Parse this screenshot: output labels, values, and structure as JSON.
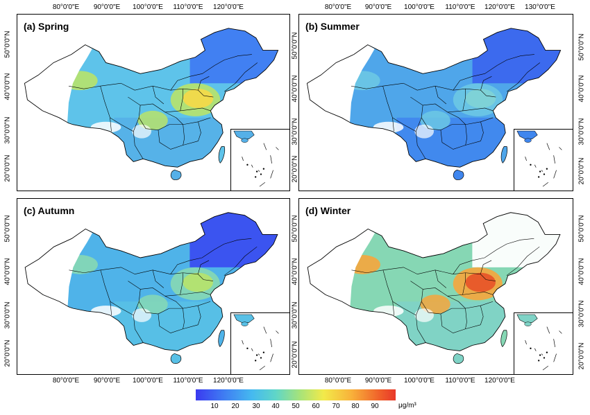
{
  "panels": [
    {
      "label": "(a) Spring",
      "season": "spring"
    },
    {
      "label": "(b) Summer",
      "season": "summer"
    },
    {
      "label": "(c) Autumn",
      "season": "autumn"
    },
    {
      "label": "(d) Winter",
      "season": "winter"
    }
  ],
  "lon_ticks": [
    "80°0'0\"E",
    "90°0'0\"E",
    "100°0'0\"E",
    "110°0'0\"E",
    "120°0'0\"E",
    "130°0'0\"E"
  ],
  "lat_ticks": [
    "50°0'0\"N",
    "40°0'0\"N",
    "30°0'0\"N",
    "20°0'0\"N"
  ],
  "colorbar": {
    "ticks": [
      "10",
      "20",
      "30",
      "40",
      "50",
      "60",
      "70",
      "80",
      "90"
    ],
    "unit": "μg/m³",
    "range": [
      0,
      95
    ],
    "colors": [
      "#3a3af0",
      "#3f7cf2",
      "#45b9f0",
      "#5fd6c8",
      "#a6e37a",
      "#f2ea4a",
      "#f8b13a",
      "#f0602a",
      "#e8382a"
    ]
  },
  "season_colors": {
    "spring": {
      "base": "#5ec3ea",
      "south": "#55b0e8",
      "north": "#3f7cf2",
      "hot": "#f2d94a",
      "hot2": "#b8e36a"
    },
    "summer": {
      "base": "#4fa6ea",
      "south": "#3f86ee",
      "north": "#3b66ee",
      "hot": "#7fd3d6",
      "hot2": "#6cc8e4"
    },
    "autumn": {
      "base": "#4fb3e9",
      "south": "#58c0e6",
      "north": "#3a4ff0",
      "hot": "#b4e36e",
      "hot2": "#86d8b4"
    },
    "winter": {
      "base": "#86d7b4",
      "south": "#7fd3c6",
      "north": "#ffffff",
      "hot": "#e8562a",
      "hot2": "#f6a63c"
    }
  }
}
